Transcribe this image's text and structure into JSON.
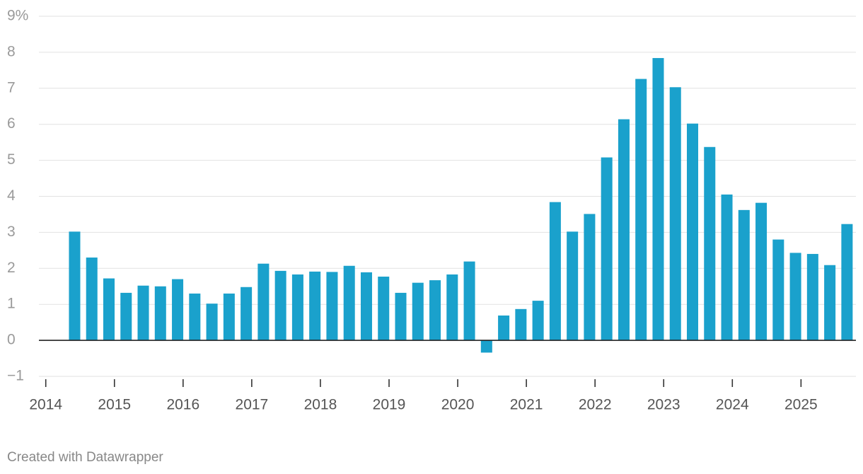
{
  "chart_data": {
    "type": "bar",
    "x": [
      2014.42,
      2014.67,
      2014.92,
      2015.17,
      2015.42,
      2015.67,
      2015.92,
      2016.17,
      2016.42,
      2016.67,
      2016.92,
      2017.17,
      2017.42,
      2017.67,
      2017.92,
      2018.17,
      2018.42,
      2018.67,
      2018.92,
      2019.17,
      2019.42,
      2019.67,
      2019.92,
      2020.17,
      2020.42,
      2020.67,
      2020.92,
      2021.17,
      2021.42,
      2021.67,
      2021.92,
      2022.17,
      2022.42,
      2022.67,
      2022.92,
      2023.17,
      2023.42,
      2023.67,
      2023.92,
      2024.17,
      2024.42,
      2024.67,
      2024.92,
      2025.17,
      2025.42,
      2025.67
    ],
    "values": [
      3.02,
      2.3,
      1.72,
      1.32,
      1.52,
      1.5,
      1.7,
      1.3,
      1.02,
      1.3,
      1.48,
      2.13,
      1.93,
      1.83,
      1.91,
      1.9,
      2.07,
      1.89,
      1.77,
      1.32,
      1.6,
      1.67,
      1.83,
      2.19,
      -0.34,
      0.69,
      0.87,
      1.1,
      3.84,
      3.02,
      3.51,
      5.08,
      6.14,
      7.26,
      7.84,
      7.03,
      6.02,
      5.37,
      4.05,
      3.62,
      3.82,
      2.8,
      2.43,
      2.4,
      2.09,
      3.23
    ],
    "color": "#1aa1cc",
    "xlim": [
      2013.9,
      2025.8
    ],
    "xticks": [
      2014,
      2015,
      2016,
      2017,
      2018,
      2019,
      2020,
      2021,
      2022,
      2023,
      2024,
      2025
    ],
    "ylim": [
      -1,
      9
    ],
    "yticks": [
      {
        "value": -1,
        "label": "−1"
      },
      0,
      1,
      2,
      3,
      4,
      5,
      6,
      7,
      8,
      {
        "value": 9,
        "label": "9%"
      }
    ],
    "grid": true,
    "footer": "Created with Datawrapper"
  }
}
